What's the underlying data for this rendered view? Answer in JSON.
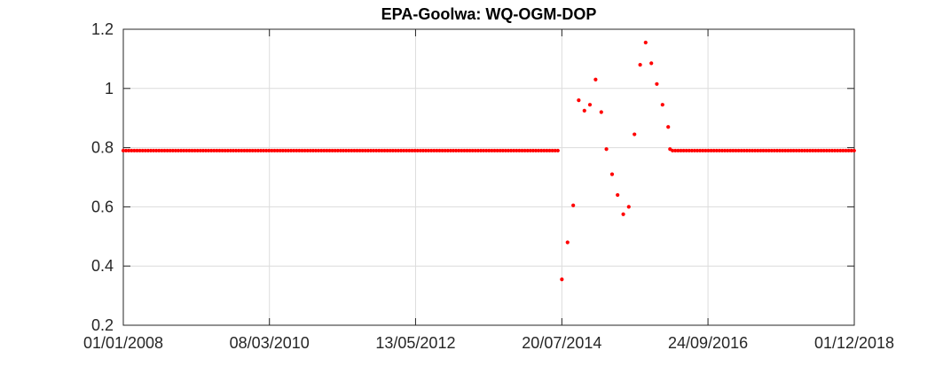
{
  "chart_data": {
    "type": "scatter",
    "title": "EPA-Goolwa: WQ-OGM-DOP",
    "xlabel": "",
    "ylabel": "",
    "x_axis_type": "date",
    "xlim": [
      "01/01/2008",
      "01/12/2018"
    ],
    "x_ticks": [
      "01/01/2008",
      "08/03/2010",
      "13/05/2012",
      "20/07/2014",
      "24/09/2016",
      "01/12/2018"
    ],
    "ylim": [
      0.2,
      1.2
    ],
    "y_ticks": [
      "0.2",
      "0.4",
      "0.6",
      "0.8",
      "1",
      "1.2"
    ],
    "grid": true,
    "marker_color": "#ff0000",
    "constant_segments": [
      {
        "start": "01/01/2008",
        "end": "01/07/2014",
        "step_days": 15,
        "value": 0.79
      },
      {
        "start": "15/03/2016",
        "end": "01/12/2018",
        "step_days": 15,
        "value": 0.79
      }
    ],
    "points": [
      {
        "x": "20/07/2014",
        "y": 0.355
      },
      {
        "x": "20/08/2014",
        "y": 0.48
      },
      {
        "x": "20/09/2014",
        "y": 0.605
      },
      {
        "x": "20/10/2014",
        "y": 0.96
      },
      {
        "x": "20/11/2014",
        "y": 0.925
      },
      {
        "x": "20/12/2014",
        "y": 0.945
      },
      {
        "x": "20/01/2015",
        "y": 1.03
      },
      {
        "x": "20/02/2015",
        "y": 0.92
      },
      {
        "x": "20/03/2015",
        "y": 0.795
      },
      {
        "x": "20/04/2015",
        "y": 0.71
      },
      {
        "x": "20/05/2015",
        "y": 0.64
      },
      {
        "x": "20/06/2015",
        "y": 0.575
      },
      {
        "x": "20/07/2015",
        "y": 0.6
      },
      {
        "x": "20/08/2015",
        "y": 0.845
      },
      {
        "x": "20/09/2015",
        "y": 1.08
      },
      {
        "x": "20/10/2015",
        "y": 1.155
      },
      {
        "x": "20/11/2015",
        "y": 1.085
      },
      {
        "x": "20/12/2015",
        "y": 1.015
      },
      {
        "x": "20/01/2016",
        "y": 0.945
      },
      {
        "x": "20/02/2016",
        "y": 0.87
      },
      {
        "x": "01/03/2016",
        "y": 0.795
      }
    ]
  }
}
